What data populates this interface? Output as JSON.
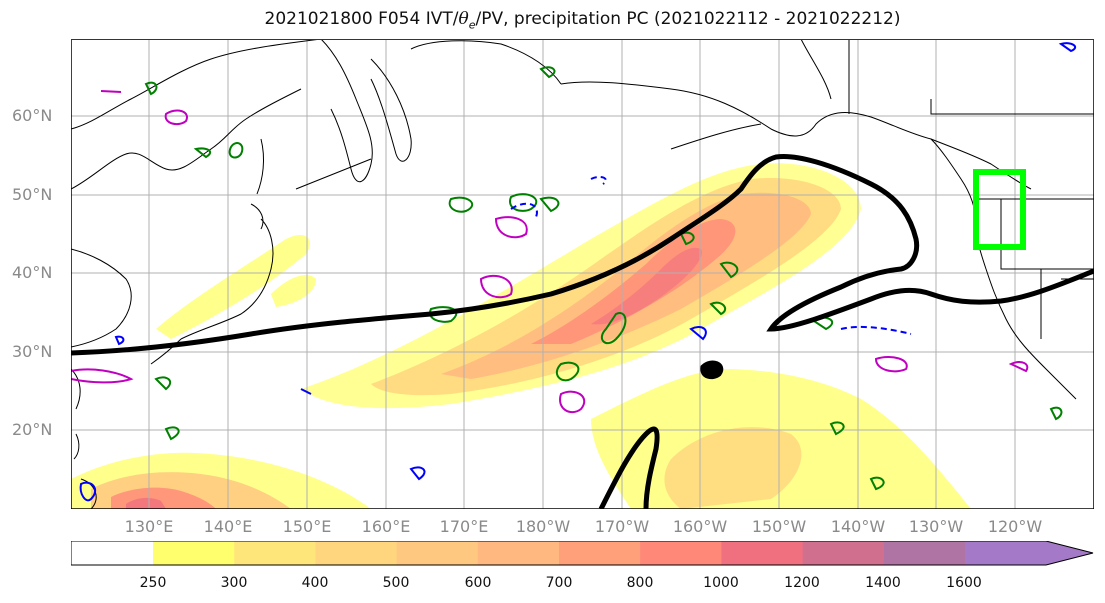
{
  "title": {
    "prefix": "2021021800 F054 IVT/",
    "theta": "θ",
    "theta_sub": "e",
    "suffix": "/PV, precipitation PC (2021022112 - 2021022212)"
  },
  "lat_labels": [
    "60°N",
    "50°N",
    "40°N",
    "30°N",
    "20°N"
  ],
  "lon_labels": [
    "130°E",
    "140°E",
    "150°E",
    "160°E",
    "170°E",
    "180°W",
    "170°W",
    "160°W",
    "150°W",
    "140°W",
    "130°W",
    "120°W"
  ],
  "colorbar": {
    "ticks": [
      "250",
      "300",
      "400",
      "500",
      "600",
      "700",
      "800",
      "1000",
      "1200",
      "1400",
      "1600"
    ],
    "colors": [
      "#ffff6e",
      "#ffe67a",
      "#ffd67e",
      "#ffc880",
      "#ffb880",
      "#ffa07a",
      "#ff8878",
      "#f07080",
      "#d0708e",
      "#b074a4",
      "#a47ac8"
    ],
    "extend": "max"
  },
  "map_elements": {
    "ivt_fill": "IVT shading 250–1600+ kg m-1 s-1",
    "theta_e_contour": "black",
    "pv_positive": "green",
    "pv_negative": "blue",
    "pv_other": "magenta",
    "box_color": "#00ff00"
  }
}
